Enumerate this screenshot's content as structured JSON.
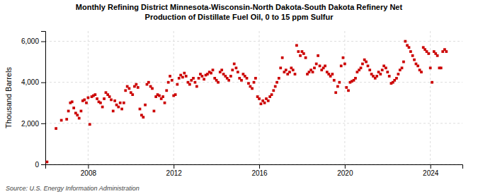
{
  "chart_data": {
    "type": "scatter",
    "title": "Monthly Refining District Minnesota-Wisconsin-North Dakota-South Dakota Refinery Net\nProduction of Distillate Fuel Oil, 0 to 15 ppm Sulfur",
    "ylabel": "Thousand Barrels",
    "annotation": "Source: U.S. Energy Information Administration",
    "color": "#cc0000",
    "marker": "square",
    "grid": true,
    "xlim": [
      2006.0,
      2025.5
    ],
    "xticks": [
      2008,
      2012,
      2016,
      2020,
      2024
    ],
    "ylim": [
      0,
      6500
    ],
    "yticks": [
      0,
      {
        "value": 2000,
        "label": "2,000"
      },
      {
        "value": 4000,
        "label": "4,000"
      },
      {
        "value": 6000,
        "label": "6,000"
      }
    ],
    "x": [
      2006.08,
      2006.5,
      2006.75,
      2007.0,
      2007.08,
      2007.17,
      2007.25,
      2007.33,
      2007.42,
      2007.5,
      2007.58,
      2007.67,
      2007.75,
      2007.83,
      2007.92,
      2008.0,
      2008.08,
      2008.17,
      2008.25,
      2008.33,
      2008.42,
      2008.5,
      2008.58,
      2008.67,
      2008.75,
      2008.83,
      2008.92,
      2009.0,
      2009.08,
      2009.17,
      2009.25,
      2009.33,
      2009.42,
      2009.5,
      2009.58,
      2009.67,
      2009.75,
      2009.83,
      2009.92,
      2010.0,
      2010.08,
      2010.17,
      2010.25,
      2010.33,
      2010.42,
      2010.5,
      2010.58,
      2010.67,
      2010.75,
      2010.83,
      2010.92,
      2011.0,
      2011.08,
      2011.17,
      2011.25,
      2011.33,
      2011.42,
      2011.5,
      2011.58,
      2011.67,
      2011.75,
      2011.83,
      2011.92,
      2012.0,
      2012.08,
      2012.17,
      2012.25,
      2012.33,
      2012.42,
      2012.5,
      2012.58,
      2012.67,
      2012.75,
      2012.83,
      2012.92,
      2013.0,
      2013.08,
      2013.17,
      2013.25,
      2013.33,
      2013.42,
      2013.5,
      2013.58,
      2013.67,
      2013.75,
      2013.83,
      2013.92,
      2014.0,
      2014.08,
      2014.17,
      2014.25,
      2014.33,
      2014.42,
      2014.5,
      2014.58,
      2014.67,
      2014.75,
      2014.83,
      2014.92,
      2015.0,
      2015.08,
      2015.17,
      2015.25,
      2015.33,
      2015.42,
      2015.5,
      2015.58,
      2015.67,
      2015.75,
      2015.83,
      2015.92,
      2016.0,
      2016.08,
      2016.17,
      2016.25,
      2016.33,
      2016.42,
      2016.5,
      2016.58,
      2016.67,
      2016.75,
      2016.83,
      2016.92,
      2017.0,
      2017.08,
      2017.17,
      2017.25,
      2017.33,
      2017.42,
      2017.5,
      2017.58,
      2017.67,
      2017.75,
      2017.83,
      2017.92,
      2018.0,
      2018.08,
      2018.17,
      2018.25,
      2018.33,
      2018.42,
      2018.5,
      2018.58,
      2018.67,
      2018.75,
      2018.83,
      2018.92,
      2019.0,
      2019.08,
      2019.17,
      2019.25,
      2019.33,
      2019.42,
      2019.5,
      2019.58,
      2019.67,
      2019.75,
      2019.83,
      2019.92,
      2020.0,
      2020.08,
      2020.17,
      2020.25,
      2020.33,
      2020.42,
      2020.5,
      2020.58,
      2020.67,
      2020.75,
      2020.83,
      2020.92,
      2021.0,
      2021.08,
      2021.17,
      2021.25,
      2021.33,
      2021.42,
      2021.5,
      2021.58,
      2021.67,
      2021.75,
      2021.83,
      2021.92,
      2022.0,
      2022.08,
      2022.17,
      2022.25,
      2022.33,
      2022.42,
      2022.5,
      2022.58,
      2022.67,
      2022.75,
      2022.83,
      2022.92,
      2023.0,
      2023.08,
      2023.17,
      2023.25,
      2023.33,
      2023.42,
      2023.5,
      2023.58,
      2023.67,
      2023.75,
      2023.83,
      2023.92,
      2024.0,
      2024.08,
      2024.17,
      2024.25,
      2024.33,
      2024.42,
      2024.5,
      2024.58,
      2024.67,
      2024.75
    ],
    "values": [
      120,
      1750,
      2150,
      2200,
      2600,
      3000,
      3050,
      2750,
      2500,
      2400,
      2250,
      2600,
      3100,
      3150,
      3000,
      3250,
      1950,
      3300,
      3350,
      3400,
      3200,
      3050,
      3000,
      2800,
      3200,
      3500,
      3400,
      3300,
      3150,
      2600,
      3100,
      2900,
      2800,
      3000,
      2700,
      3000,
      3600,
      3800,
      3700,
      3500,
      3400,
      3800,
      3900,
      3750,
      2700,
      2400,
      2300,
      2900,
      3900,
      4000,
      3800,
      3700,
      2600,
      3300,
      3400,
      3350,
      3200,
      3300,
      3000,
      3600,
      4000,
      4300,
      4100,
      3350,
      3400,
      3900,
      4200,
      4350,
      4250,
      4450,
      4300,
      4000,
      3900,
      4100,
      4200,
      4000,
      3800,
      4200,
      4400,
      4300,
      4150,
      4350,
      4400,
      4500,
      4450,
      4600,
      4200,
      4100,
      4000,
      4500,
      4600,
      4400,
      4300,
      4200,
      4100,
      4300,
      4600,
      4900,
      4700,
      4500,
      4200,
      4100,
      4400,
      4300,
      4200,
      3950,
      3800,
      3700,
      4000,
      4200,
      3300,
      3200,
      2950,
      3100,
      3000,
      3200,
      3100,
      3300,
      3400,
      3600,
      3800,
      4000,
      4200,
      4700,
      5200,
      4500,
      4600,
      4400,
      4500,
      4700,
      4600,
      4400,
      5800,
      5500,
      5300,
      5500,
      5400,
      5200,
      4400,
      4500,
      4600,
      4500,
      4700,
      4900,
      5300,
      4800,
      4600,
      4700,
      4800,
      4500,
      4400,
      4300,
      4400,
      4100,
      3500,
      3800,
      4000,
      4800,
      5200,
      4900,
      3750,
      3600,
      4000,
      4050,
      4100,
      4200,
      4500,
      4600,
      4700,
      4900,
      5100,
      5000,
      4800,
      4600,
      4400,
      4300,
      4200,
      4300,
      4500,
      4400,
      4600,
      4800,
      4700,
      4500,
      4300,
      3950,
      4000,
      4100,
      4200,
      4400,
      4600,
      4700,
      5000,
      6000,
      5800,
      5700,
      5500,
      5300,
      5100,
      4900,
      4800,
      4600,
      4500,
      5700,
      5600,
      5500,
      5400,
      4700,
      4000,
      5500,
      5400,
      5300,
      4700,
      4700,
      5500,
      5600,
      5500
    ]
  }
}
